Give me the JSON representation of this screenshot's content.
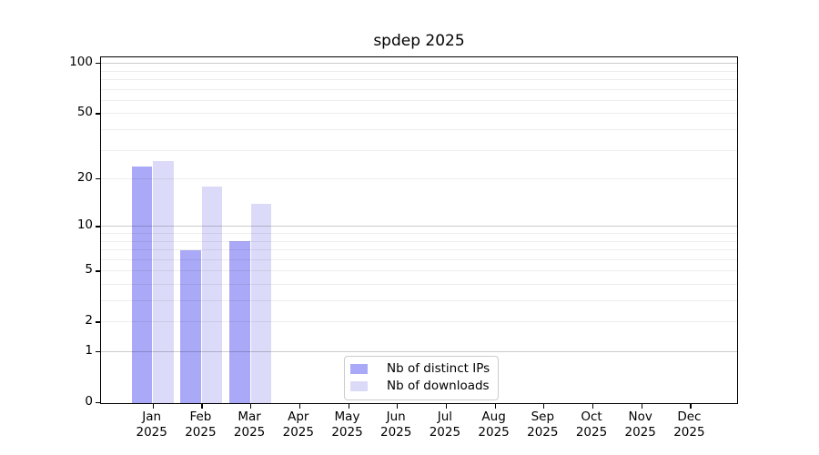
{
  "chart_data": {
    "type": "bar",
    "title": "spdep 2025",
    "categories": [
      {
        "month": "Jan",
        "year": "2025"
      },
      {
        "month": "Feb",
        "year": "2025"
      },
      {
        "month": "Mar",
        "year": "2025"
      },
      {
        "month": "Apr",
        "year": "2025"
      },
      {
        "month": "May",
        "year": "2025"
      },
      {
        "month": "Jun",
        "year": "2025"
      },
      {
        "month": "Jul",
        "year": "2025"
      },
      {
        "month": "Aug",
        "year": "2025"
      },
      {
        "month": "Sep",
        "year": "2025"
      },
      {
        "month": "Oct",
        "year": "2025"
      },
      {
        "month": "Nov",
        "year": "2025"
      },
      {
        "month": "Dec",
        "year": "2025"
      }
    ],
    "series": [
      {
        "name": "Nb of distinct IPs",
        "color": "#a9a9f7",
        "values": [
          24,
          7,
          8,
          0,
          0,
          0,
          0,
          0,
          0,
          0,
          0,
          0
        ]
      },
      {
        "name": "Nb of downloads",
        "color": "#dbdbf9",
        "values": [
          26,
          18,
          14,
          0,
          0,
          0,
          0,
          0,
          0,
          0,
          0,
          0
        ]
      }
    ],
    "y_axis": {
      "scale": "log10(value+1)",
      "tick_values": [
        0,
        1,
        2,
        5,
        10,
        20,
        50,
        100
      ],
      "major_gridline_values": [
        1,
        10,
        100
      ],
      "minor_gridline_values": [
        2,
        3,
        4,
        5,
        6,
        7,
        8,
        9,
        20,
        30,
        40,
        50,
        60,
        70,
        80,
        90
      ],
      "ylim": [
        0,
        100
      ]
    },
    "legend": {
      "position": "lower-center",
      "items": [
        "Nb of distinct IPs",
        "Nb of downloads"
      ]
    },
    "grid": true
  },
  "colors": {
    "distinct_ips_bar": "#a9a9f7",
    "downloads_bar": "#dbdbf9",
    "axis": "#000000",
    "major_gridline": "#cccccc",
    "minor_gridline": "#ededed",
    "legend_border": "#cccccc",
    "background": "#ffffff"
  }
}
